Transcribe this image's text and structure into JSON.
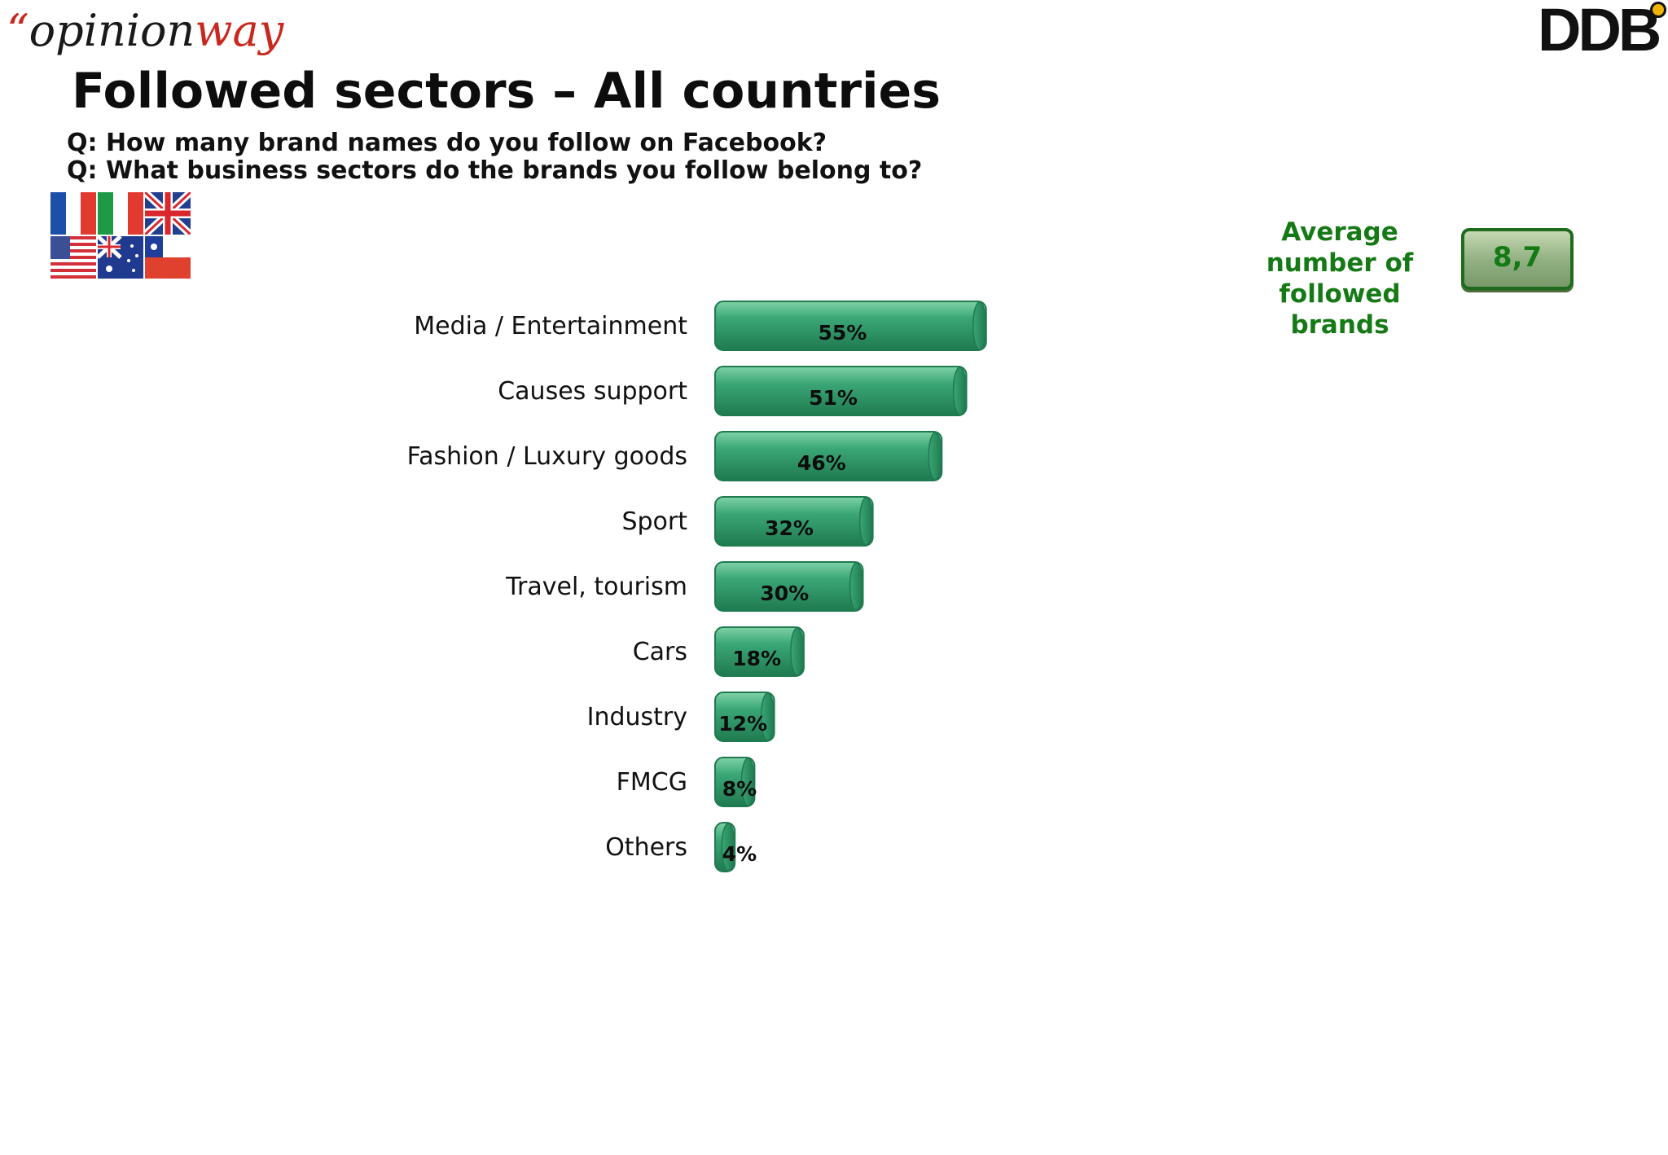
{
  "header": {
    "logo_left_quote": "“",
    "logo_left_part1": "opinion",
    "logo_left_part2": "way",
    "logo_right": "DDB"
  },
  "title": "Followed sectors – All countries",
  "questions": [
    "Q: How many brand names do you follow on Facebook?",
    "Q: What business sectors do the brands you follow belong to?"
  ],
  "flags": [
    "france-flag",
    "italy-flag",
    "uk-flag",
    "usa-flag",
    "australia-flag",
    "chile-flag"
  ],
  "average": {
    "label": "Average number of followed brands",
    "value": "8,7"
  },
  "colors": {
    "bar": "#3aa676",
    "bar_dark": "#1f7a50",
    "bar_light": "#7fd2a6",
    "accent_green": "#157a15",
    "brand_red": "#c8281e"
  },
  "chart_data": {
    "type": "bar",
    "orientation": "horizontal",
    "categories": [
      "Media / Entertainment",
      "Causes support",
      "Fashion / Luxury goods",
      "Sport",
      "Travel, tourism",
      "Cars",
      "Industry",
      "FMCG",
      "Others"
    ],
    "values": [
      55,
      51,
      46,
      32,
      30,
      18,
      12,
      8,
      4
    ],
    "value_labels": [
      "55%",
      "51%",
      "46%",
      "32%",
      "30%",
      "18%",
      "12%",
      "8%",
      "4%"
    ],
    "unit": "%",
    "xlim": [
      0,
      100
    ],
    "grid": false,
    "legend": "none",
    "style": "3d-cylinder"
  }
}
